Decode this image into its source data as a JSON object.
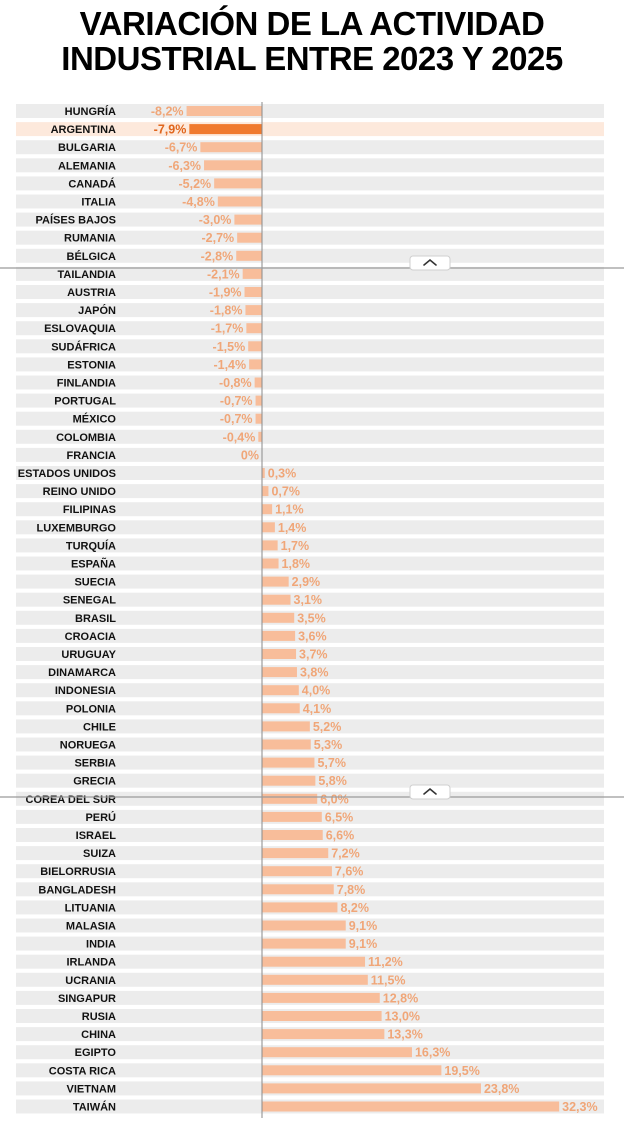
{
  "header": {
    "title_line_1": "VARIACIÓN DE LA ACTIVIDAD",
    "title_line_2": "INDUSTRIAL ENTRE 2023 Y 2025"
  },
  "colors": {
    "bar": "#F8BD9A",
    "bar_highlight": "#F07A2F",
    "value_text": "#F0A678",
    "value_text_highlight": "#E0651C",
    "row_band": "#ECECEC",
    "row_band_highlight": "#FDE9DC",
    "axis": "#8A8A8A"
  },
  "highlight_category": "ARGENTINA",
  "expand_icons": [
    "chevron-up-icon",
    "chevron-up-icon"
  ],
  "chart_data": {
    "type": "bar",
    "orientation": "horizontal",
    "title": "VARIACIÓN DE LA ACTIVIDAD INDUSTRIAL ENTRE 2023 Y 2025",
    "unit": "%",
    "xlim": [
      -8.5,
      33
    ],
    "categories": [
      "HUNGRÍA",
      "ARGENTINA",
      "BULGARIA",
      "ALEMANIA",
      "CANADÁ",
      "ITALIA",
      "PAÍSES BAJOS",
      "RUMANIA",
      "BÉLGICA",
      "TAILANDIA",
      "AUSTRIA",
      "JAPÓN",
      "ESLOVAQUIA",
      "SUDÁFRICA",
      "ESTONIA",
      "FINLANDIA",
      "PORTUGAL",
      "MÉXICO",
      "COLOMBIA",
      "FRANCIA",
      "ESTADOS UNIDOS",
      "REINO UNIDO",
      "FILIPINAS",
      "LUXEMBURGO",
      "TURQUÍA",
      "ESPAÑA",
      "SUECIA",
      "SENEGAL",
      "BRASIL",
      "CROACIA",
      "URUGUAY",
      "DINAMARCA",
      "INDONESIA",
      "POLONIA",
      "CHILE",
      "NORUEGA",
      "SERBIA",
      "GRECIA",
      "COREA DEL SUR",
      "PERÚ",
      "ISRAEL",
      "SUIZA",
      "BIELORRUSIA",
      "BANGLADESH",
      "LITUANIA",
      "MALASIA",
      "INDIA",
      "IRLANDA",
      "UCRANIA",
      "SINGAPUR",
      "RUSIA",
      "CHINA",
      "EGIPTO",
      "COSTA RICA",
      "VIETNAM",
      "TAIWÁN"
    ],
    "values": [
      -8.2,
      -7.9,
      -6.7,
      -6.3,
      -5.2,
      -4.8,
      -3.0,
      -2.7,
      -2.8,
      -2.1,
      -1.9,
      -1.8,
      -1.7,
      -1.5,
      -1.4,
      -0.8,
      -0.7,
      -0.7,
      -0.4,
      0,
      0.3,
      0.7,
      1.1,
      1.4,
      1.7,
      1.8,
      2.9,
      3.1,
      3.5,
      3.6,
      3.7,
      3.8,
      4.0,
      4.1,
      5.2,
      5.3,
      5.7,
      5.8,
      6.0,
      6.5,
      6.6,
      7.2,
      7.6,
      7.8,
      8.2,
      9.1,
      9.1,
      11.2,
      11.5,
      12.8,
      13.0,
      13.3,
      16.3,
      19.5,
      23.8,
      32.3
    ],
    "value_labels": [
      "-8,2%",
      "-7,9%",
      "-6,7%",
      "-6,3%",
      "-5,2%",
      "-4,8%",
      "-3,0%",
      "-2,7%",
      "-2,8%",
      "-2,1%",
      "-1,9%",
      "-1,8%",
      "-1,7%",
      "-1,5%",
      "-1,4%",
      "-0,8%",
      "-0,7%",
      "-0,7%",
      "-0,4%",
      "0%",
      "0,3%",
      "0,7%",
      "1,1%",
      "1,4%",
      "1,7%",
      "1,8%",
      "2,9%",
      "3,1%",
      "3,5%",
      "3,6%",
      "3,7%",
      "3,8%",
      "4,0%",
      "4,1%",
      "5,2%",
      "5,3%",
      "5,7%",
      "5,8%",
      "6,0%",
      "6,5%",
      "6,6%",
      "7,2%",
      "7,6%",
      "7,8%",
      "8,2%",
      "9,1%",
      "9,1%",
      "11,2%",
      "11,5%",
      "12,8%",
      "13,0%",
      "13,3%",
      "16,3%",
      "19,5%",
      "23,8%",
      "32,3%"
    ]
  }
}
